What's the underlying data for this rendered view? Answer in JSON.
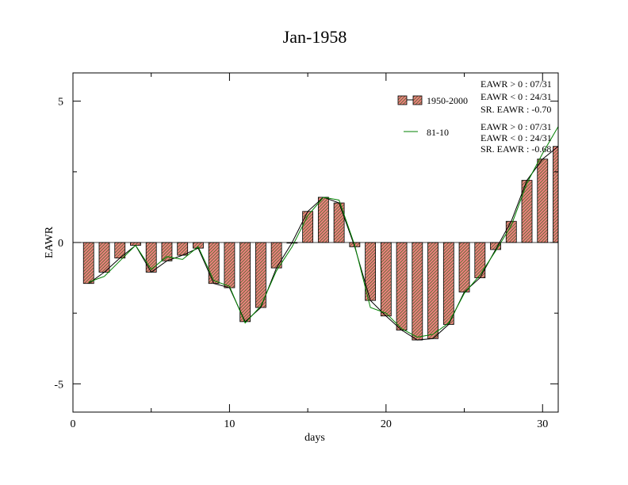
{
  "chart_data": {
    "type": "bar",
    "title": "Jan-1958",
    "xlabel": "days",
    "ylabel": "EAWR",
    "xlim": [
      0,
      31
    ],
    "ylim": [
      -6,
      6
    ],
    "x_ticks": [
      0,
      10,
      20,
      30
    ],
    "y_ticks": [
      -5,
      0,
      5
    ],
    "grid": false,
    "legend_position": "top-right",
    "colors": {
      "bar_fill": "#f08080",
      "bar_hatch": "#556b2f",
      "line_81_10": "#008000",
      "line_1950_2000": "#000000"
    },
    "x": [
      1,
      2,
      3,
      4,
      5,
      6,
      7,
      8,
      9,
      10,
      11,
      12,
      13,
      14,
      15,
      16,
      17,
      18,
      19,
      20,
      21,
      22,
      23,
      24,
      25,
      26,
      27,
      28,
      29,
      30,
      31
    ],
    "series": [
      {
        "name": "1950-2000",
        "style": "bar",
        "values": [
          -1.45,
          -1.05,
          -0.55,
          -0.1,
          -1.05,
          -0.65,
          -0.45,
          -0.2,
          -1.45,
          -1.6,
          -2.8,
          -2.3,
          -0.9,
          0.0,
          1.1,
          1.6,
          1.4,
          -0.15,
          -2.05,
          -2.6,
          -3.1,
          -3.45,
          -3.4,
          -2.9,
          -1.75,
          -1.25,
          -0.25,
          0.75,
          2.2,
          2.95,
          3.4
        ]
      },
      {
        "name": "81-10",
        "style": "line",
        "values": [
          -1.4,
          -1.2,
          -0.65,
          -0.1,
          -0.95,
          -0.5,
          -0.6,
          -0.15,
          -1.35,
          -1.55,
          -2.85,
          -2.25,
          -1.0,
          -0.15,
          0.95,
          1.6,
          1.5,
          -0.1,
          -2.3,
          -2.5,
          -3.05,
          -3.35,
          -3.25,
          -2.85,
          -1.8,
          -1.15,
          -0.3,
          0.6,
          2.1,
          3.15,
          4.1
        ]
      }
    ],
    "annotations": {
      "group1": [
        "EAWR > 0 : 07/31",
        "EAWR < 0 : 24/31",
        "SR. EAWR : -0.70"
      ],
      "group2": [
        "EAWR > 0 : 07/31",
        "EAWR < 0 : 24/31",
        "SR. EAWR : -0.68"
      ]
    }
  }
}
